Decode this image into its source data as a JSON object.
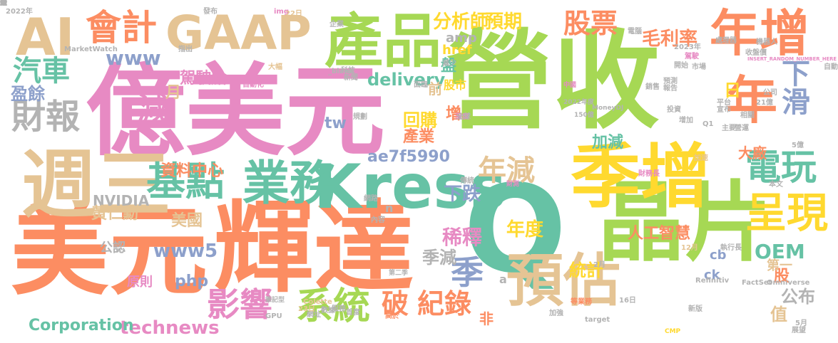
{
  "words": [
    {
      "text": "營收",
      "color": "#a6d854"
    },
    {
      "text": "億美元",
      "color": "#e78ac3"
    },
    {
      "text": "美元",
      "color": "#fc8d62"
    },
    {
      "text": "輝達",
      "color": "#fc8d62"
    },
    {
      "text": "晶片",
      "color": "#a6d854"
    },
    {
      "text": "Q",
      "color": "#66c2a5"
    },
    {
      "text": "季增",
      "color": "#ffd92f"
    },
    {
      "text": "產品",
      "color": "#a6d854"
    },
    {
      "text": "GAAP",
      "color": "#e5c494"
    },
    {
      "text": "AI",
      "color": "#e5c494"
    },
    {
      "text": "週三",
      "color": "#e5c494"
    },
    {
      "text": "年增",
      "color": "#fc8d62"
    },
    {
      "text": "Kress",
      "color": "#66c2a5"
    },
    {
      "text": "業務",
      "color": "#66c2a5"
    },
    {
      "text": "年",
      "color": "#fc8d62"
    },
    {
      "text": "預估",
      "color": "#e5c494"
    },
    {
      "text": "呈現",
      "color": "#ffd92f"
    },
    {
      "text": "基點",
      "color": "#66c2a5"
    },
    {
      "text": "電玩",
      "color": "#66c2a5"
    },
    {
      "text": "會計",
      "color": "#fc8d62"
    },
    {
      "text": "財報",
      "color": "#b3b3b3"
    },
    {
      "text": "汽車",
      "color": "#66c2a5"
    },
    {
      "text": "減",
      "color": "#e78ac3"
    },
    {
      "text": "系統",
      "color": "#a6d854"
    },
    {
      "text": "影響",
      "color": "#e78ac3"
    },
    {
      "text": "破",
      "color": "#fc8d62"
    },
    {
      "text": "紀錄",
      "color": "#fc8d62"
    },
    {
      "text": "季",
      "color": "#8da0cb"
    },
    {
      "text": "年減",
      "color": "#e5c494"
    },
    {
      "text": "下滑",
      "color": "#8da0cb"
    },
    {
      "text": "股票",
      "color": "#fc8d62"
    },
    {
      "text": "預期",
      "color": "#ffd92f"
    },
    {
      "text": "分析師",
      "color": "#ffd92f"
    },
    {
      "text": "毛利率",
      "color": "#fc8d62"
    },
    {
      "text": "www",
      "color": "#8da0cb"
    },
    {
      "text": "www5",
      "color": "#8da0cb"
    },
    {
      "text": "delivery",
      "color": "#66c2a5"
    },
    {
      "text": "technews",
      "color": "#e78ac3"
    },
    {
      "text": "Corporation",
      "color": "#66c2a5"
    },
    {
      "text": "OEM",
      "color": "#66c2a5"
    },
    {
      "text": "php",
      "color": "#8da0cb"
    },
    {
      "text": "ae7f5990",
      "color": "#8da0cb"
    },
    {
      "text": "NVIDIA",
      "color": "#b3b3b3"
    },
    {
      "text": "資料中心",
      "color": "#fc8d62"
    },
    {
      "text": "駕駛艙",
      "color": "#e78ac3"
    },
    {
      "text": "黃仁勳",
      "color": "#e5c494"
    },
    {
      "text": "美國",
      "color": "#e5c494"
    },
    {
      "text": "盈餘",
      "color": "#8da0cb"
    },
    {
      "text": "月",
      "color": "#e5c494"
    },
    {
      "text": "tw",
      "color": "#8da0cb"
    },
    {
      "text": "回購",
      "color": "#ffd92f"
    },
    {
      "text": "產業",
      "color": "#fc8d62"
    },
    {
      "text": "增",
      "color": "#fc8d62"
    },
    {
      "text": "盤",
      "color": "#66c2a5"
    },
    {
      "text": "前",
      "color": "#e5c494"
    },
    {
      "text": "加減",
      "color": "#66c2a5"
    },
    {
      "text": "大廠",
      "color": "#fc8d62"
    },
    {
      "text": "日",
      "color": "#ffd92f"
    },
    {
      "text": "稀釋",
      "color": "#e78ac3"
    },
    {
      "text": "下跌",
      "color": "#8da0cb"
    },
    {
      "text": "年度",
      "color": "#ffd92f"
    },
    {
      "text": "季減",
      "color": "#b3b3b3"
    },
    {
      "text": "統計",
      "color": "#ffd92f"
    },
    {
      "text": "人工智慧",
      "color": "#fc8d62"
    },
    {
      "text": "公布",
      "color": "#b3b3b3"
    },
    {
      "text": "股",
      "color": "#fc8d62"
    },
    {
      "text": "第一",
      "color": "#e5c494"
    },
    {
      "text": "值",
      "color": "#e5c494"
    },
    {
      "text": "非",
      "color": "#fc8d62"
    },
    {
      "text": "公認",
      "color": "#b3b3b3"
    },
    {
      "text": "原則",
      "color": "#e78ac3"
    },
    {
      "text": "amp",
      "color": "#b3b3b3"
    },
    {
      "text": "href",
      "color": "#ffd92f"
    },
    {
      "text": "股市",
      "color": "#ffd92f"
    },
    {
      "text": "cb",
      "color": "#8da0cb"
    },
    {
      "text": "ck",
      "color": "#8da0cb"
    },
    {
      "text": "n",
      "color": "#b3b3b3"
    },
    {
      "text": "a",
      "color": "#b3b3b3"
    },
    {
      "text": "2022年",
      "color": "#b3b3b3"
    },
    {
      "text": "發布",
      "color": "#b3b3b3"
    },
    {
      "text": "img",
      "color": "#e78ac3"
    },
    {
      "text": "企業",
      "color": "#b3b3b3"
    },
    {
      "text": "MarketWatch",
      "color": "#b3b3b3"
    },
    {
      "text": "指出",
      "color": "#b3b3b3"
    },
    {
      "text": "大幅",
      "color": "#e5c494"
    },
    {
      "text": "_blank",
      "color": "#b3b3b3"
    },
    {
      "text": "科技",
      "color": "#b3b3b3"
    },
    {
      "text": "新聞",
      "color": "#b3b3b3"
    },
    {
      "text": "面臨",
      "color": "#b3b3b3"
    },
    {
      "text": "中國",
      "color": "#e78ac3"
    },
    {
      "text": "2月",
      "color": "#b3b3b3"
    },
    {
      "text": "Refinitiv",
      "color": "#b3b3b3"
    },
    {
      "text": "FactSet",
      "color": "#b3b3b3"
    },
    {
      "text": "Omniverse",
      "color": "#b3b3b3"
    },
    {
      "text": "GPU",
      "color": "#b3b3b3"
    },
    {
      "text": "Colette",
      "color": "#e5c494"
    },
    {
      "text": "CMP",
      "color": "#ffd92f"
    },
    {
      "text": "INSERT_RANDOM_NUMBER_HERE",
      "color": "#e78ac3"
    },
    {
      "text": "MoneyDJ",
      "color": "#b3b3b3"
    },
    {
      "text": "150億",
      "color": "#b3b3b3"
    },
    {
      "text": "2022年度",
      "color": "#b3b3b3"
    },
    {
      "text": "筆記型",
      "color": "#b3b3b3"
    },
    {
      "text": "target",
      "color": "#b3b3b3"
    },
    {
      "text": "12月",
      "color": "#e5c494"
    },
    {
      "text": "執行長",
      "color": "#b3b3b3"
    },
    {
      "text": "第二季",
      "color": "#b3b3b3"
    },
    {
      "text": "處理器",
      "color": "#b3b3b3"
    },
    {
      "text": "機器人",
      "color": "#b3b3b3"
    },
    {
      "text": "2023年",
      "color": "#b3b3b3"
    },
    {
      "text": "收盤價",
      "color": "#b3b3b3"
    },
    {
      "text": "電腦",
      "color": "#b3b3b3"
    },
    {
      "text": "駕駛",
      "color": "#e78ac3"
    },
    {
      "text": "21億",
      "color": "#b3b3b3"
    },
    {
      "text": "自動化",
      "color": "#e78ac3"
    },
    {
      "text": "財測",
      "color": "#e78ac3"
    },
    {
      "text": "加速",
      "color": "#e5c494"
    },
    {
      "text": "財務長",
      "color": "#e78ac3"
    },
    {
      "text": "16日",
      "color": "#b3b3b3"
    },
    {
      "text": "網址",
      "color": "#b3b3b3"
    },
    {
      "text": "數據",
      "color": "#b3b3b3"
    },
    {
      "text": "深度",
      "color": "#e78ac3"
    },
    {
      "text": "新版",
      "color": "#b3b3b3"
    },
    {
      "text": "傳統",
      "color": "#b3b3b3"
    },
    {
      "text": "規劃",
      "color": "#b3b3b3"
    },
    {
      "text": "服務",
      "color": "#b3b3b3"
    },
    {
      "text": "高於",
      "color": "#fc8d62"
    },
    {
      "text": "等業務",
      "color": "#fc8d62"
    },
    {
      "text": "加強",
      "color": "#b3b3b3"
    },
    {
      "text": "市場",
      "color": "#b3b3b3"
    },
    {
      "text": "投資",
      "color": "#b3b3b3"
    },
    {
      "text": "預測",
      "color": "#b3b3b3"
    },
    {
      "text": "銷售",
      "color": "#b3b3b3"
    },
    {
      "text": "平台",
      "color": "#b3b3b3"
    },
    {
      "text": "宣布",
      "color": "#b3b3b3"
    },
    {
      "text": "相關",
      "color": "#b3b3b3"
    },
    {
      "text": "本文",
      "color": "#b3b3b3"
    },
    {
      "text": "公司",
      "color": "#b3b3b3"
    },
    {
      "text": "主要",
      "color": "#b3b3b3"
    },
    {
      "text": "營運",
      "color": "#b3b3b3"
    },
    {
      "text": "增加",
      "color": "#b3b3b3"
    },
    {
      "text": "減少",
      "color": "#b3b3b3"
    },
    {
      "text": "首度",
      "color": "#b3b3b3"
    },
    {
      "text": "22日",
      "color": "#e5c494"
    },
    {
      "text": "23日",
      "color": "#e5c494"
    },
    {
      "text": "5億",
      "color": "#b3b3b3"
    },
    {
      "text": "Q1",
      "color": "#b3b3b3"
    },
    {
      "text": "5月",
      "color": "#b3b3b3"
    },
    {
      "text": "自動",
      "color": "#b3b3b3"
    },
    {
      "text": "開始",
      "color": "#b3b3b3"
    },
    {
      "text": "報告",
      "color": "#b3b3b3"
    },
    {
      "text": "網路",
      "color": "#b3b3b3"
    },
    {
      "text": "內容",
      "color": "#b3b3b3"
    },
    {
      "text": "全球",
      "color": "#b3b3b3"
    },
    {
      "text": "展望",
      "color": "#b3b3b3"
    },
    {
      "text": "新",
      "color": "#b3b3b3"
    },
    {
      "text": "近",
      "color": "#b3b3b3"
    },
    {
      "text": "跌",
      "color": "#b3b3b3"
    },
    {
      "text": "約",
      "color": "#b3b3b3"
    },
    {
      "text": "全",
      "color": "#b3b3b3"
    },
    {
      "text": "超",
      "color": "#b3b3b3"
    },
    {
      "text": "正",
      "color": "#b3b3b3"
    }
  ]
}
